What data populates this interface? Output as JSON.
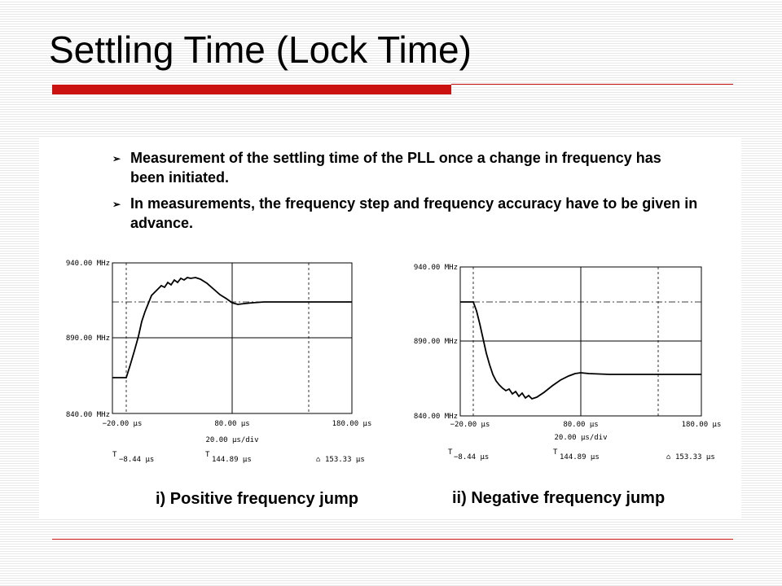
{
  "slide": {
    "title": "Settling Time (Lock Time)",
    "accent_color": "#cc1111",
    "bullets": [
      "Measurement of the settling time of the PLL once a change in frequency has been initiated.",
      "In measurements, the frequency step and frequency accuracy have to be given in advance."
    ],
    "bullet_icon": "arrowhead-right-icon"
  },
  "plots": [
    {
      "caption": "i) Positive frequency jump",
      "y_top": "940.00 MHz",
      "y_mid": "890.00 MHz",
      "y_bot": "840.00 MHz",
      "x_left": "−20.00 μs",
      "x_mid": "80.00 μs",
      "x_right": "180.00 μs",
      "scale": "20.00 μs/div",
      "t1": "−8.44 μs",
      "t2": "144.89 μs",
      "delta": "153.33 μs"
    },
    {
      "caption": "ii) Negative frequency jump",
      "y_top": "940.00 MHz",
      "y_mid": "890.00 MHz",
      "y_bot": "840.00 MHz",
      "x_left": "−20.00 μs",
      "x_mid": "80.00 μs",
      "x_right": "180.00 μs",
      "scale": "20.00 μs/div",
      "t1": "−8.44 μs",
      "t2": "144.89 μs",
      "delta": "153.33 μs"
    }
  ]
}
